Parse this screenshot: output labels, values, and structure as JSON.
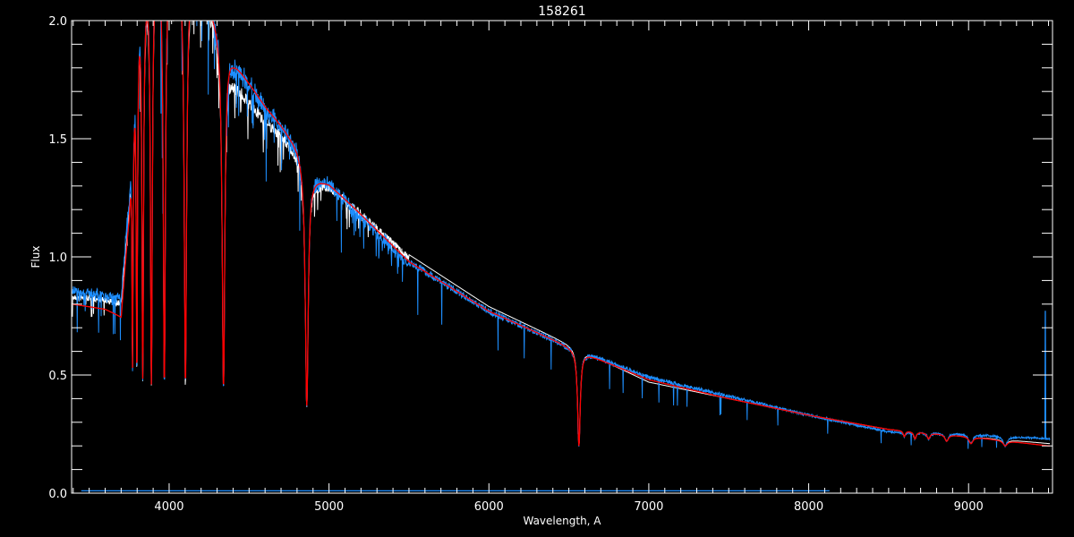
{
  "chart_data": {
    "type": "line",
    "title": "158261",
    "xlabel": "Wavelength, A",
    "ylabel": "Flux",
    "xlim": [
      3390,
      9525
    ],
    "ylim": [
      0.0,
      2.0
    ],
    "grid": false,
    "x_major_ticks": [
      4000,
      5000,
      6000,
      7000,
      8000,
      9000
    ],
    "x_tick_labels": [
      "4000",
      "5000",
      "6000",
      "7000",
      "8000",
      "9000"
    ],
    "x_minor_step": 100,
    "y_major_ticks": [
      0.0,
      0.5,
      1.0,
      1.5,
      2.0
    ],
    "y_tick_labels": [
      "0.0",
      "0.5",
      "1.0",
      "1.5",
      "2.0"
    ],
    "y_minor_step": 0.1,
    "continuum_wavelengths": [
      3400,
      3500,
      3600,
      3700,
      3750,
      3800,
      3900,
      4000,
      4100,
      4200,
      4300,
      4400,
      4500,
      4600,
      4700,
      4800,
      4850,
      4900,
      5000,
      5200,
      5500,
      6000,
      6500,
      7000,
      7500,
      8000,
      8500,
      9000,
      9500
    ],
    "absorption_lines": [
      {
        "wavelength": 3771,
        "min_flux": 0.55,
        "width": 4
      },
      {
        "wavelength": 3798,
        "min_flux": 0.52,
        "width": 5
      },
      {
        "wavelength": 3835,
        "min_flux": 0.5,
        "width": 6
      },
      {
        "wavelength": 3889,
        "min_flux": 0.47,
        "width": 7
      },
      {
        "wavelength": 3970,
        "min_flux": 0.47,
        "width": 8
      },
      {
        "wavelength": 4102,
        "min_flux": 0.47,
        "width": 9
      },
      {
        "wavelength": 4340,
        "min_flux": 0.45,
        "width": 10
      },
      {
        "wavelength": 4861,
        "min_flux": 0.37,
        "width": 11
      },
      {
        "wavelength": 6563,
        "min_flux": 0.2,
        "width": 10
      },
      {
        "wavelength": 8598,
        "min_flux": 0.24,
        "width": 8
      },
      {
        "wavelength": 8665,
        "min_flux": 0.23,
        "width": 9
      },
      {
        "wavelength": 8750,
        "min_flux": 0.23,
        "width": 11
      },
      {
        "wavelength": 8863,
        "min_flux": 0.22,
        "width": 13
      },
      {
        "wavelength": 9015,
        "min_flux": 0.21,
        "width": 15
      },
      {
        "wavelength": 9229,
        "min_flux": 0.2,
        "width": 16
      }
    ],
    "series": [
      {
        "color": "#ffffff",
        "continuum": [
          0.84,
          0.84,
          0.83,
          0.82,
          1.25,
          2.1,
          2.3,
          2.3,
          2.25,
          2.15,
          2.0,
          1.78,
          1.68,
          1.6,
          1.54,
          1.46,
          1.4,
          1.34,
          1.32,
          1.2,
          1.01,
          0.79,
          0.63,
          0.47,
          0.4,
          0.33,
          0.27,
          0.24,
          0.21
        ]
      },
      {
        "color": "#1e8fff",
        "continuum": [
          0.87,
          0.86,
          0.85,
          0.84,
          1.3,
          2.15,
          2.35,
          2.35,
          2.3,
          2.2,
          2.05,
          1.86,
          1.76,
          1.66,
          1.58,
          1.49,
          1.42,
          1.36,
          1.33,
          1.18,
          0.98,
          0.77,
          0.62,
          0.49,
          0.41,
          0.33,
          0.26,
          0.25,
          0.23
        ],
        "spike": {
          "wavelength": 9480,
          "flux": 0.77
        }
      },
      {
        "color": "#ff0000",
        "continuum": [
          0.8,
          0.79,
          0.78,
          0.75,
          1.2,
          2.1,
          2.3,
          2.3,
          2.25,
          2.15,
          2.0,
          1.84,
          1.74,
          1.64,
          1.56,
          1.47,
          1.4,
          1.34,
          1.31,
          1.18,
          0.98,
          0.77,
          0.62,
          0.48,
          0.4,
          0.33,
          0.27,
          0.24,
          0.2
        ]
      }
    ],
    "error_series": {
      "color": "#1e8fff",
      "x_range": [
        3450,
        8130
      ],
      "flux": 0.01
    }
  }
}
